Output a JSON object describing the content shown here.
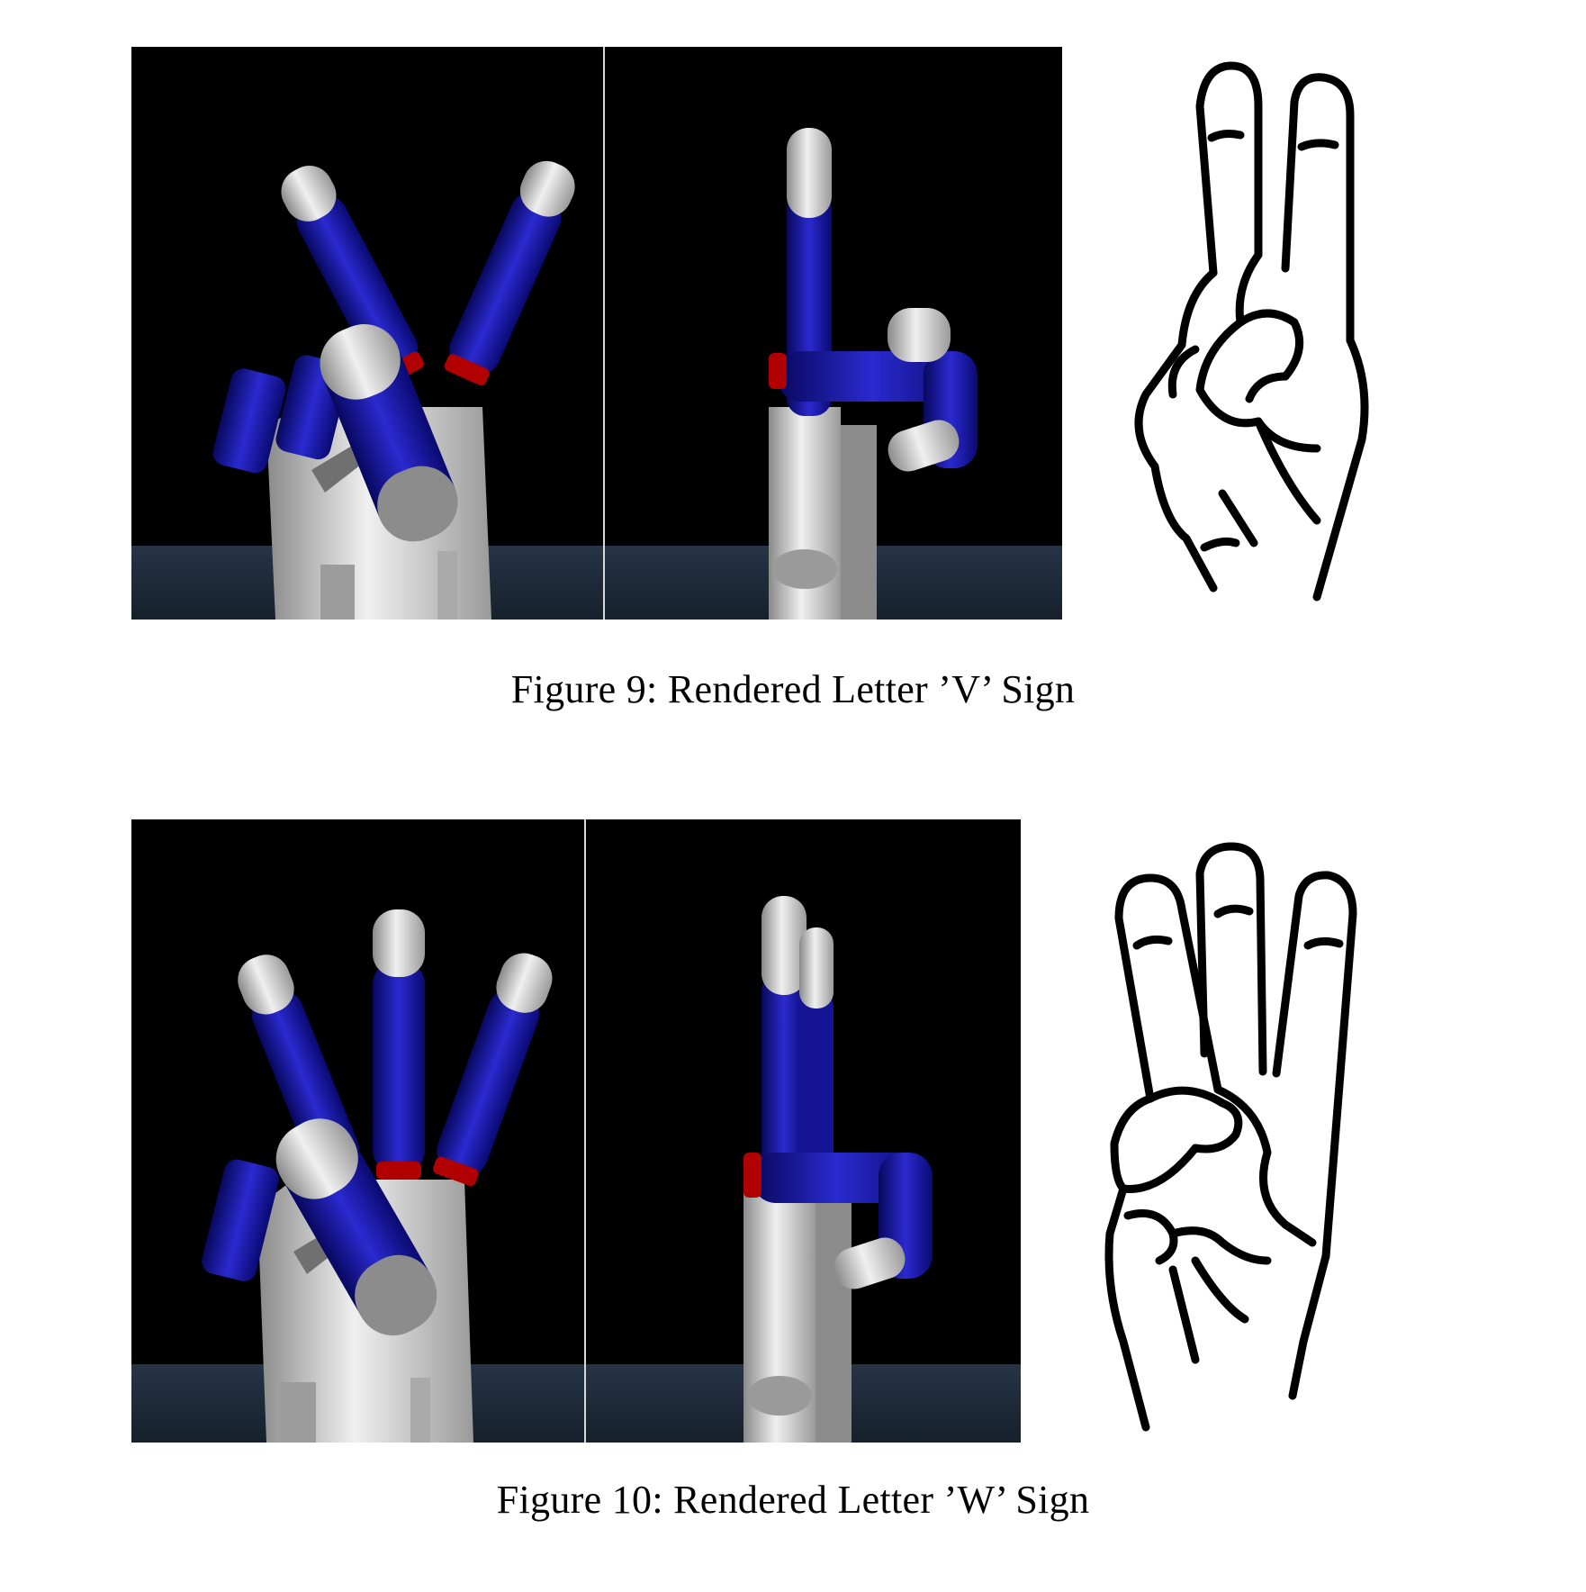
{
  "figures": [
    {
      "number": "9",
      "caption": "Figure 9: Rendered Letter ’V’ Sign",
      "letter": "V",
      "panels": [
        "robot-hand-front-render",
        "robot-hand-side-render",
        "asl-hand-drawing"
      ]
    },
    {
      "number": "10",
      "caption": "Figure 10: Rendered Letter ’W’ Sign",
      "letter": "W",
      "panels": [
        "robot-hand-front-render",
        "robot-hand-side-render",
        "asl-hand-drawing"
      ]
    }
  ],
  "colors": {
    "background": "#000000",
    "table": "#1d2a3a",
    "finger_blue": "#1414a8",
    "joint_red": "#b00000",
    "metal_grey": "#b8b8b8",
    "ink": "#000000"
  }
}
